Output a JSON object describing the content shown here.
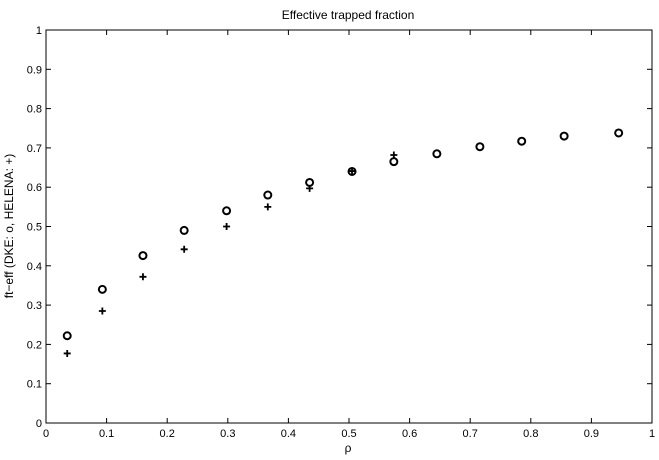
{
  "chart_data": {
    "type": "scatter",
    "title": "Effective trapped fraction",
    "xlabel": "ρ",
    "ylabel": "ft−eff (DKE: o, HELENA: +)",
    "xlim": [
      0,
      1
    ],
    "ylim": [
      0,
      1
    ],
    "xticks": [
      "0",
      "0.1",
      "0.2",
      "0.3",
      "0.4",
      "0.5",
      "0.6",
      "0.7",
      "0.8",
      "0.9",
      "1"
    ],
    "yticks": [
      "0",
      "0.1",
      "0.2",
      "0.3",
      "0.4",
      "0.5",
      "0.6",
      "0.7",
      "0.8",
      "0.9",
      "1"
    ],
    "grid": false,
    "legend": "none",
    "series": [
      {
        "marker": "circle",
        "color": "#000000",
        "x": [
          0.035,
          0.093,
          0.16,
          0.228,
          0.298,
          0.366,
          0.435,
          0.505,
          0.574,
          0.645,
          0.716,
          0.785,
          0.855,
          0.945
        ],
        "y": [
          0.222,
          0.34,
          0.426,
          0.49,
          0.54,
          0.58,
          0.612,
          0.64,
          0.665,
          0.685,
          0.703,
          0.717,
          0.73,
          0.738
        ]
      },
      {
        "marker": "plus",
        "color": "#000000",
        "x": [
          0.035,
          0.093,
          0.16,
          0.228,
          0.298,
          0.366,
          0.435,
          0.505,
          0.574
        ],
        "y": [
          0.177,
          0.285,
          0.372,
          0.442,
          0.5,
          0.55,
          0.597,
          0.641,
          0.682
        ]
      }
    ]
  }
}
